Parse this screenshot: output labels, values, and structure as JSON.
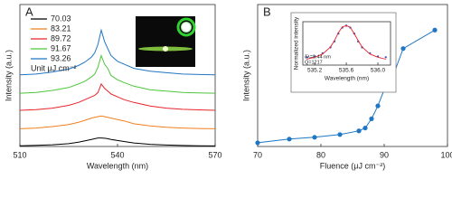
{
  "chart_data": [
    {
      "type": "line",
      "panel": "A",
      "x_label": "Wavelength (nm)",
      "y_label": "Intensity (a.u.)",
      "legend_note": "Unit μJ cm⁻²",
      "xlim": [
        510,
        570
      ],
      "xticks": [
        510,
        540,
        570
      ],
      "ylim": [
        0,
        10
      ],
      "x": [
        510,
        515,
        520,
        525,
        528,
        530,
        532,
        533,
        534,
        535,
        536,
        537,
        538,
        540,
        542,
        545,
        550,
        555,
        560,
        565,
        570
      ],
      "series": [
        {
          "name": "70.03",
          "color": "#000000",
          "values": [
            0.05,
            0.08,
            0.12,
            0.2,
            0.3,
            0.4,
            0.5,
            0.55,
            0.6,
            0.6,
            0.58,
            0.55,
            0.5,
            0.42,
            0.35,
            0.25,
            0.15,
            0.1,
            0.07,
            0.05,
            0.04
          ]
        },
        {
          "name": "83.21",
          "color": "#f07f1e",
          "values": [
            1.25,
            1.3,
            1.4,
            1.55,
            1.7,
            1.85,
            2.0,
            2.05,
            2.1,
            2.15,
            2.1,
            2.05,
            2.0,
            1.9,
            1.8,
            1.6,
            1.45,
            1.35,
            1.3,
            1.27,
            1.25
          ]
        },
        {
          "name": "89.72",
          "color": "#e8242a",
          "values": [
            2.55,
            2.6,
            2.7,
            2.9,
            3.1,
            3.3,
            3.5,
            3.6,
            3.8,
            4.4,
            4.1,
            3.9,
            3.7,
            3.5,
            3.3,
            3.1,
            2.85,
            2.7,
            2.62,
            2.58,
            2.55
          ]
        },
        {
          "name": "91.67",
          "color": "#4cc63a",
          "values": [
            3.75,
            3.8,
            3.95,
            4.15,
            4.4,
            4.6,
            4.9,
            5.1,
            5.6,
            6.4,
            5.8,
            5.5,
            5.0,
            4.7,
            4.5,
            4.25,
            4.0,
            3.9,
            3.8,
            3.77,
            3.75
          ]
        },
        {
          "name": "93.26",
          "color": "#1f77c4",
          "values": [
            5.05,
            5.1,
            5.25,
            5.45,
            5.7,
            5.95,
            6.3,
            6.6,
            7.2,
            8.2,
            7.4,
            6.9,
            6.4,
            6.0,
            5.8,
            5.5,
            5.3,
            5.2,
            5.1,
            5.07,
            5.05
          ]
        }
      ]
    },
    {
      "type": "line",
      "panel": "B",
      "x_label": "Fluence (μJ cm⁻²)",
      "y_label": "Intensity (a.u.)",
      "xlim": [
        70,
        100
      ],
      "xticks": [
        70,
        80,
        90,
        100
      ],
      "ylim": [
        0,
        10
      ],
      "markers": true,
      "x": [
        70,
        75,
        79,
        83,
        86,
        87,
        88,
        89,
        90,
        91,
        93,
        98
      ],
      "series": [
        {
          "name": null,
          "color": "#1f77c4",
          "values": [
            0.26,
            0.52,
            0.65,
            0.84,
            1.1,
            1.3,
            1.95,
            2.86,
            4.0,
            4.5,
            6.9,
            8.2
          ]
        }
      ]
    },
    {
      "type": "scatter",
      "x_label": "Wavelength (nm)",
      "y_label": "Normalized intensity",
      "annotations": [
        "δλ=0.44 nm",
        "Q=1217"
      ],
      "xlim": [
        535.05,
        536.16
      ],
      "xticks": [
        535.2,
        535.6,
        {
          "value": 536.0,
          "label": "536.0"
        }
      ],
      "ylim": [
        0,
        1.1
      ],
      "x": [
        535.1,
        535.2,
        535.3,
        535.4,
        535.45,
        535.5,
        535.55,
        535.6,
        535.65,
        535.7,
        535.75,
        535.8,
        535.9,
        536.0,
        536.1
      ],
      "series": [
        {
          "name": null,
          "color": "#3a5fc8",
          "mode": "markers",
          "values": [
            0.2,
            0.22,
            0.3,
            0.45,
            0.6,
            0.8,
            0.95,
            1.0,
            0.95,
            0.8,
            0.6,
            0.45,
            0.3,
            0.22,
            0.2
          ]
        },
        {
          "name": null,
          "color": "#e8242a",
          "mode": "line",
          "values": [
            0.15,
            0.2,
            0.28,
            0.46,
            0.62,
            0.82,
            0.97,
            1.0,
            0.96,
            0.8,
            0.62,
            0.46,
            0.28,
            0.2,
            0.15
          ]
        }
      ]
    }
  ]
}
